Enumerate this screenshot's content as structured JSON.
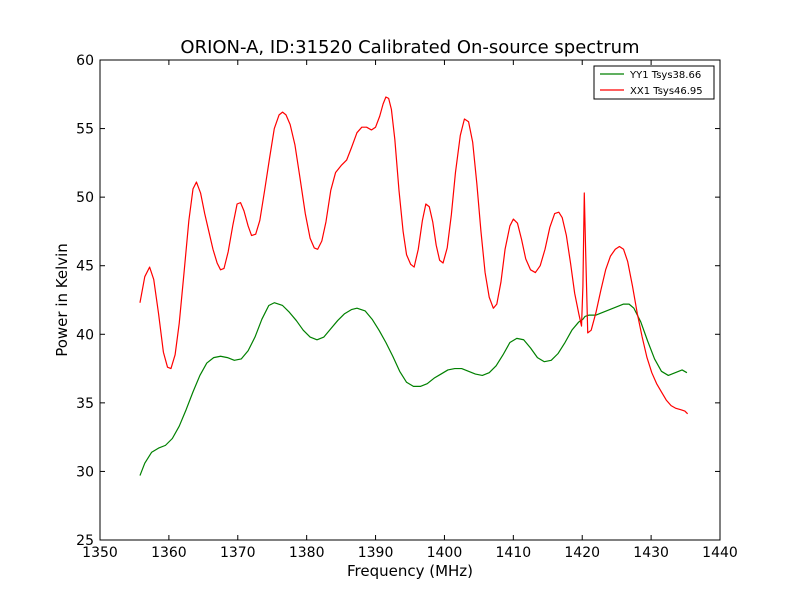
{
  "chart_data": {
    "type": "line",
    "title": "ORION-A, ID:31520 Calibrated On-source spectrum",
    "xlabel": "Frequency (MHz)",
    "ylabel": "Power in Kelvin",
    "xlim": [
      1350,
      1440
    ],
    "ylim": [
      25,
      60
    ],
    "xticks": [
      "1350",
      "1360",
      "1370",
      "1380",
      "1390",
      "1400",
      "1410",
      "1420",
      "1430",
      "1440"
    ],
    "yticks": [
      "25",
      "30",
      "35",
      "40",
      "45",
      "50",
      "55",
      "60"
    ],
    "grid": false,
    "legend_position": "top-right",
    "series": [
      {
        "name": "YY1 Tsys38.66",
        "color": "#008000",
        "points": [
          [
            1355.8,
            29.7
          ],
          [
            1356.5,
            30.6
          ],
          [
            1357.5,
            31.4
          ],
          [
            1358.5,
            31.7
          ],
          [
            1359.5,
            31.9
          ],
          [
            1360.5,
            32.4
          ],
          [
            1361.5,
            33.3
          ],
          [
            1362.5,
            34.5
          ],
          [
            1363.5,
            35.8
          ],
          [
            1364.5,
            37.0
          ],
          [
            1365.5,
            37.9
          ],
          [
            1366.5,
            38.3
          ],
          [
            1367.5,
            38.4
          ],
          [
            1368.5,
            38.3
          ],
          [
            1369.5,
            38.1
          ],
          [
            1370.5,
            38.2
          ],
          [
            1371.5,
            38.8
          ],
          [
            1372.5,
            39.8
          ],
          [
            1373.5,
            41.1
          ],
          [
            1374.5,
            42.1
          ],
          [
            1375.3,
            42.3
          ],
          [
            1376.5,
            42.1
          ],
          [
            1377.5,
            41.6
          ],
          [
            1378.5,
            41.0
          ],
          [
            1379.5,
            40.3
          ],
          [
            1380.5,
            39.8
          ],
          [
            1381.5,
            39.6
          ],
          [
            1382.5,
            39.8
          ],
          [
            1383.5,
            40.4
          ],
          [
            1384.5,
            41.0
          ],
          [
            1385.5,
            41.5
          ],
          [
            1386.5,
            41.8
          ],
          [
            1387.3,
            41.9
          ],
          [
            1388.5,
            41.7
          ],
          [
            1389.5,
            41.1
          ],
          [
            1390.5,
            40.3
          ],
          [
            1391.5,
            39.4
          ],
          [
            1392.5,
            38.4
          ],
          [
            1393.5,
            37.3
          ],
          [
            1394.5,
            36.5
          ],
          [
            1395.5,
            36.2
          ],
          [
            1396.5,
            36.2
          ],
          [
            1397.5,
            36.4
          ],
          [
            1398.5,
            36.8
          ],
          [
            1399.5,
            37.1
          ],
          [
            1400.5,
            37.4
          ],
          [
            1401.5,
            37.5
          ],
          [
            1402.5,
            37.5
          ],
          [
            1403.5,
            37.3
          ],
          [
            1404.5,
            37.1
          ],
          [
            1405.5,
            37.0
          ],
          [
            1406.5,
            37.2
          ],
          [
            1407.5,
            37.7
          ],
          [
            1408.5,
            38.5
          ],
          [
            1409.5,
            39.4
          ],
          [
            1410.5,
            39.7
          ],
          [
            1411.5,
            39.6
          ],
          [
            1412.5,
            39.0
          ],
          [
            1413.5,
            38.3
          ],
          [
            1414.5,
            38.0
          ],
          [
            1415.5,
            38.1
          ],
          [
            1416.5,
            38.6
          ],
          [
            1417.5,
            39.4
          ],
          [
            1418.5,
            40.3
          ],
          [
            1419.5,
            40.9
          ],
          [
            1420.1,
            41.1
          ],
          [
            1420.4,
            41.3
          ],
          [
            1421.0,
            41.4
          ],
          [
            1422.0,
            41.4
          ],
          [
            1423.0,
            41.6
          ],
          [
            1424.0,
            41.8
          ],
          [
            1425.0,
            42.0
          ],
          [
            1426.0,
            42.2
          ],
          [
            1426.8,
            42.2
          ],
          [
            1427.5,
            41.9
          ],
          [
            1428.5,
            40.9
          ],
          [
            1429.5,
            39.5
          ],
          [
            1430.5,
            38.2
          ],
          [
            1431.5,
            37.3
          ],
          [
            1432.5,
            37.0
          ],
          [
            1433.5,
            37.2
          ],
          [
            1434.5,
            37.4
          ],
          [
            1435.2,
            37.2
          ]
        ]
      },
      {
        "name": "XX1 Tsys46.95",
        "color": "#ff0000",
        "points": [
          [
            1355.8,
            42.3
          ],
          [
            1356.5,
            44.2
          ],
          [
            1357.2,
            44.9
          ],
          [
            1357.8,
            44.0
          ],
          [
            1358.5,
            41.5
          ],
          [
            1359.2,
            38.7
          ],
          [
            1359.8,
            37.6
          ],
          [
            1360.3,
            37.5
          ],
          [
            1360.9,
            38.5
          ],
          [
            1361.5,
            40.8
          ],
          [
            1362.2,
            44.5
          ],
          [
            1362.9,
            48.3
          ],
          [
            1363.5,
            50.6
          ],
          [
            1364.0,
            51.1
          ],
          [
            1364.6,
            50.3
          ],
          [
            1365.2,
            48.8
          ],
          [
            1365.8,
            47.5
          ],
          [
            1366.4,
            46.2
          ],
          [
            1367.0,
            45.2
          ],
          [
            1367.5,
            44.7
          ],
          [
            1368.0,
            44.8
          ],
          [
            1368.6,
            46.0
          ],
          [
            1369.3,
            48.0
          ],
          [
            1369.9,
            49.5
          ],
          [
            1370.4,
            49.6
          ],
          [
            1370.9,
            49.0
          ],
          [
            1371.5,
            47.9
          ],
          [
            1372.0,
            47.2
          ],
          [
            1372.6,
            47.3
          ],
          [
            1373.2,
            48.3
          ],
          [
            1373.9,
            50.5
          ],
          [
            1374.6,
            52.8
          ],
          [
            1375.3,
            55.0
          ],
          [
            1376.0,
            56.0
          ],
          [
            1376.5,
            56.2
          ],
          [
            1377.0,
            56.0
          ],
          [
            1377.6,
            55.3
          ],
          [
            1378.3,
            53.8
          ],
          [
            1379.0,
            51.5
          ],
          [
            1379.8,
            48.8
          ],
          [
            1380.5,
            47.0
          ],
          [
            1381.1,
            46.3
          ],
          [
            1381.6,
            46.2
          ],
          [
            1382.2,
            46.8
          ],
          [
            1382.8,
            48.2
          ],
          [
            1383.5,
            50.5
          ],
          [
            1384.2,
            51.8
          ],
          [
            1385.0,
            52.3
          ],
          [
            1385.8,
            52.7
          ],
          [
            1386.5,
            53.6
          ],
          [
            1387.3,
            54.7
          ],
          [
            1388.0,
            55.1
          ],
          [
            1388.7,
            55.1
          ],
          [
            1389.4,
            54.9
          ],
          [
            1390.0,
            55.1
          ],
          [
            1390.6,
            55.9
          ],
          [
            1391.1,
            56.8
          ],
          [
            1391.5,
            57.3
          ],
          [
            1391.9,
            57.2
          ],
          [
            1392.3,
            56.4
          ],
          [
            1392.8,
            54.2
          ],
          [
            1393.4,
            50.5
          ],
          [
            1394.0,
            47.5
          ],
          [
            1394.5,
            45.8
          ],
          [
            1395.1,
            45.1
          ],
          [
            1395.6,
            44.9
          ],
          [
            1396.2,
            46.2
          ],
          [
            1396.8,
            48.3
          ],
          [
            1397.3,
            49.5
          ],
          [
            1397.8,
            49.3
          ],
          [
            1398.3,
            48.2
          ],
          [
            1398.8,
            46.5
          ],
          [
            1399.3,
            45.4
          ],
          [
            1399.8,
            45.2
          ],
          [
            1400.4,
            46.3
          ],
          [
            1401.0,
            48.7
          ],
          [
            1401.6,
            51.8
          ],
          [
            1402.3,
            54.5
          ],
          [
            1402.9,
            55.7
          ],
          [
            1403.5,
            55.5
          ],
          [
            1404.1,
            54.0
          ],
          [
            1404.7,
            51.0
          ],
          [
            1405.3,
            47.5
          ],
          [
            1405.9,
            44.5
          ],
          [
            1406.5,
            42.7
          ],
          [
            1407.1,
            41.9
          ],
          [
            1407.6,
            42.2
          ],
          [
            1408.2,
            43.8
          ],
          [
            1408.8,
            46.2
          ],
          [
            1409.5,
            47.9
          ],
          [
            1410.0,
            48.4
          ],
          [
            1410.6,
            48.1
          ],
          [
            1411.2,
            46.9
          ],
          [
            1411.8,
            45.5
          ],
          [
            1412.5,
            44.7
          ],
          [
            1413.2,
            44.5
          ],
          [
            1413.9,
            45.0
          ],
          [
            1414.6,
            46.2
          ],
          [
            1415.3,
            47.8
          ],
          [
            1416.0,
            48.8
          ],
          [
            1416.6,
            48.9
          ],
          [
            1417.1,
            48.5
          ],
          [
            1417.7,
            47.2
          ],
          [
            1418.3,
            45.2
          ],
          [
            1418.9,
            43.0
          ],
          [
            1419.5,
            41.5
          ],
          [
            1419.9,
            40.6
          ],
          [
            1420.1,
            43.5
          ],
          [
            1420.3,
            50.3
          ],
          [
            1420.5,
            46.0
          ],
          [
            1420.8,
            40.1
          ],
          [
            1421.3,
            40.3
          ],
          [
            1422.0,
            41.6
          ],
          [
            1422.7,
            43.2
          ],
          [
            1423.4,
            44.7
          ],
          [
            1424.1,
            45.7
          ],
          [
            1424.8,
            46.2
          ],
          [
            1425.4,
            46.4
          ],
          [
            1426.0,
            46.2
          ],
          [
            1426.6,
            45.3
          ],
          [
            1427.3,
            43.5
          ],
          [
            1428.0,
            41.5
          ],
          [
            1428.7,
            39.8
          ],
          [
            1429.4,
            38.3
          ],
          [
            1430.1,
            37.2
          ],
          [
            1430.8,
            36.4
          ],
          [
            1431.5,
            35.8
          ],
          [
            1432.2,
            35.2
          ],
          [
            1432.9,
            34.8
          ],
          [
            1433.6,
            34.6
          ],
          [
            1434.3,
            34.5
          ],
          [
            1434.9,
            34.4
          ],
          [
            1435.3,
            34.2
          ]
        ]
      }
    ]
  }
}
